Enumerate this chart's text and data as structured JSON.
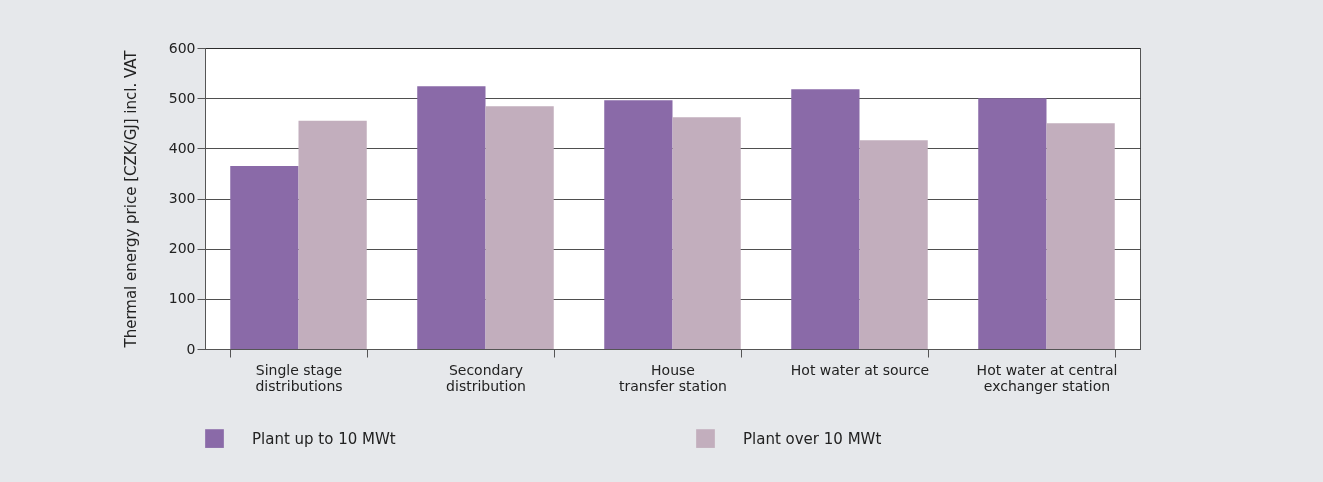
{
  "chart_data": {
    "type": "bar",
    "ylabel": "Thermal energy price [CZK/GJ] incl. VAT",
    "categories": [
      "Single stage\ndistributions",
      "Secondary\ndistribution",
      "House\ntransfer station",
      "Hot water at source",
      "Hot water at  central\nexchanger station"
    ],
    "series": [
      {
        "name": "Plant up to 10 MWt",
        "color": "#8a6aa8",
        "values": [
          365,
          524,
          496,
          518,
          500
        ]
      },
      {
        "name": "Plant over 10 MWt",
        "color": "#c2aebd",
        "values": [
          455,
          484,
          462,
          416,
          450
        ]
      }
    ],
    "ylim": [
      0,
      600
    ],
    "yticks": [
      0,
      100,
      200,
      300,
      400,
      500,
      600
    ],
    "grid": "y",
    "legend": "bottom"
  }
}
